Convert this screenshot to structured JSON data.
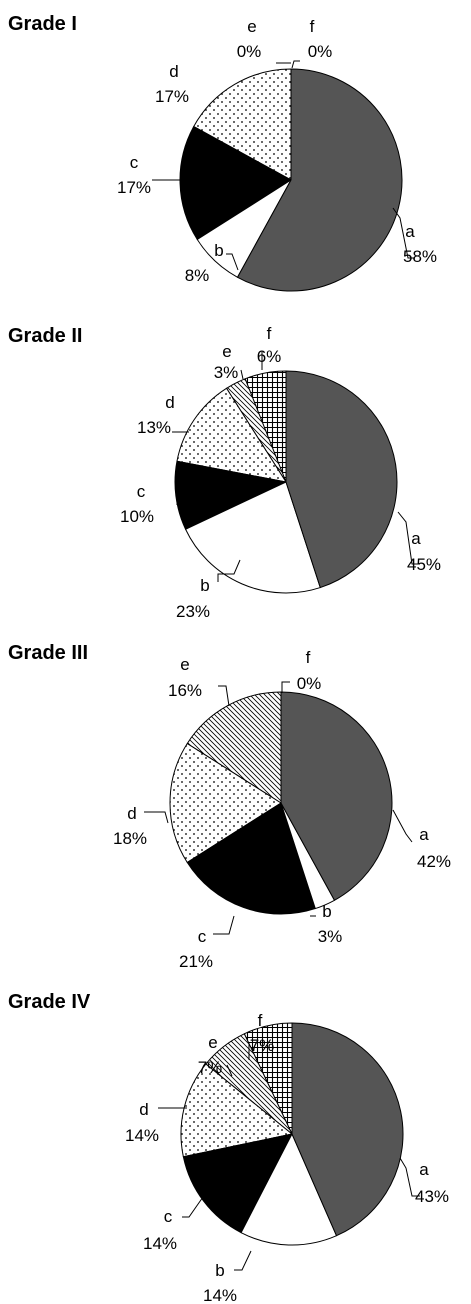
{
  "colors": {
    "a": "#555555",
    "b": "#ffffff",
    "c": "#000000",
    "d": "dots-pattern",
    "e": "diagonal-hatch-pattern",
    "f": "crosshatch-pattern"
  },
  "chart_data": [
    {
      "type": "pie",
      "title": "Grade I",
      "categories": [
        "a",
        "b",
        "c",
        "d",
        "e",
        "f"
      ],
      "values": [
        58,
        8,
        17,
        17,
        0,
        0
      ],
      "value_labels": [
        "58%",
        "8%",
        "17%",
        "17%",
        "0%",
        "0%"
      ]
    },
    {
      "type": "pie",
      "title": "Grade II",
      "categories": [
        "a",
        "b",
        "c",
        "d",
        "e",
        "f"
      ],
      "values": [
        45,
        23,
        10,
        13,
        3,
        6
      ],
      "value_labels": [
        "45%",
        "23%",
        "10%",
        "13%",
        "3%",
        "6%"
      ]
    },
    {
      "type": "pie",
      "title": "Grade III",
      "categories": [
        "a",
        "b",
        "c",
        "d",
        "e",
        "f"
      ],
      "values": [
        42,
        3,
        21,
        18,
        16,
        0
      ],
      "value_labels": [
        "42%",
        "3%",
        "21%",
        "18%",
        "16%",
        "0%"
      ]
    },
    {
      "type": "pie",
      "title": "Grade IV",
      "categories": [
        "a",
        "b",
        "c",
        "d",
        "e",
        "f"
      ],
      "values": [
        43,
        14,
        14,
        14,
        7,
        7
      ],
      "value_labels": [
        "43%",
        "14%",
        "14%",
        "14%",
        "7%",
        "7%"
      ]
    }
  ]
}
